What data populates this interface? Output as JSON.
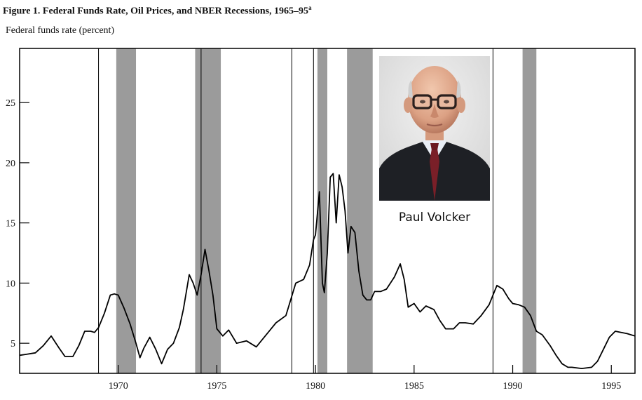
{
  "figure_title": "Figure 1. Federal Funds Rate, Oil Prices, and NBER Recessions, 1965–95",
  "figure_title_note": "a",
  "photo_caption": "Paul Volcker",
  "photo_subject": "portrait-of-man-with-glasses-in-suit",
  "colors": {
    "line": "#000000",
    "recession_shade": "#8a8a8a",
    "axis": "#000000",
    "background": "#ffffff"
  },
  "chart_data": {
    "type": "line",
    "title": "Figure 1. Federal Funds Rate, Oil Prices, and NBER Recessions, 1965–95",
    "ylabel": "Federal funds rate (percent)",
    "xlabel": "",
    "xlim": [
      1965.0,
      1996.2
    ],
    "ylim": [
      2.5,
      29.5
    ],
    "x_ticks": [
      1970,
      1975,
      1980,
      1985,
      1990,
      1995
    ],
    "y_ticks": [
      5,
      10,
      15,
      20,
      25
    ],
    "grid": false,
    "recessions": [
      [
        1969.9,
        1970.9
      ],
      [
        1973.9,
        1975.2
      ],
      [
        1980.1,
        1980.6
      ],
      [
        1981.6,
        1982.9
      ],
      [
        1990.5,
        1991.2
      ]
    ],
    "oil_shocks": [
      1969.0,
      1974.2,
      1978.8,
      1979.9,
      1989.0
    ],
    "series": [
      {
        "x": [
          1965.0,
          1965.4,
          1965.8,
          1966.2,
          1966.6,
          1967.0,
          1967.3,
          1967.7,
          1968.0,
          1968.3,
          1968.6,
          1968.8,
          1969.0,
          1969.3,
          1969.6,
          1969.8,
          1970.0,
          1970.3,
          1970.6,
          1970.9,
          1971.1,
          1971.3,
          1971.6,
          1971.9,
          1972.2,
          1972.5,
          1972.8,
          1973.1,
          1973.3,
          1973.6,
          1973.8,
          1974.0,
          1974.2,
          1974.4,
          1974.6,
          1974.8,
          1975.0,
          1975.3,
          1975.6,
          1976.0,
          1976.5,
          1977.0,
          1977.5,
          1978.0,
          1978.5,
          1979.0,
          1979.4,
          1979.7,
          1979.9,
          1980.0,
          1980.2,
          1980.35,
          1980.45,
          1980.6,
          1980.75,
          1980.9,
          1981.05,
          1981.2,
          1981.35,
          1981.5,
          1981.65,
          1981.8,
          1982.0,
          1982.2,
          1982.4,
          1982.6,
          1982.8,
          1983.0,
          1983.3,
          1983.6,
          1984.0,
          1984.3,
          1984.5,
          1984.7,
          1985.0,
          1985.3,
          1985.6,
          1986.0,
          1986.3,
          1986.6,
          1987.0,
          1987.3,
          1987.6,
          1988.0,
          1988.4,
          1988.8,
          1989.0,
          1989.2,
          1989.5,
          1989.8,
          1990.0,
          1990.3,
          1990.6,
          1990.9,
          1991.2,
          1991.5,
          1991.9,
          1992.2,
          1992.5,
          1992.8,
          1993.0,
          1993.5,
          1994.0,
          1994.3,
          1994.6,
          1994.9,
          1995.2,
          1995.5,
          1995.8,
          1996.0,
          1996.2
        ],
        "y": [
          4.0,
          4.1,
          4.2,
          4.8,
          5.6,
          4.6,
          3.9,
          3.9,
          4.8,
          6.0,
          6.0,
          5.9,
          6.3,
          7.5,
          9.0,
          9.1,
          9.0,
          7.9,
          6.6,
          5.0,
          3.8,
          4.6,
          5.5,
          4.5,
          3.3,
          4.5,
          5.0,
          6.3,
          7.8,
          10.7,
          10.0,
          9.0,
          10.7,
          12.8,
          11.0,
          9.0,
          6.2,
          5.6,
          6.1,
          5.0,
          5.2,
          4.7,
          5.7,
          6.7,
          7.3,
          10.0,
          10.3,
          11.5,
          13.6,
          14.0,
          17.6,
          10.0,
          9.2,
          12.5,
          18.8,
          19.1,
          15.0,
          19.0,
          18.0,
          16.0,
          12.5,
          14.7,
          14.2,
          11.0,
          9.0,
          8.6,
          8.6,
          9.3,
          9.3,
          9.5,
          10.5,
          11.6,
          10.3,
          8.0,
          8.3,
          7.6,
          8.1,
          7.8,
          6.9,
          6.2,
          6.2,
          6.7,
          6.7,
          6.6,
          7.3,
          8.2,
          9.0,
          9.8,
          9.5,
          8.7,
          8.3,
          8.2,
          8.0,
          7.3,
          6.0,
          5.7,
          4.8,
          4.0,
          3.3,
          3.0,
          3.0,
          2.9,
          3.0,
          3.5,
          4.5,
          5.5,
          6.0,
          5.9,
          5.8,
          5.7,
          5.6
        ]
      }
    ]
  }
}
